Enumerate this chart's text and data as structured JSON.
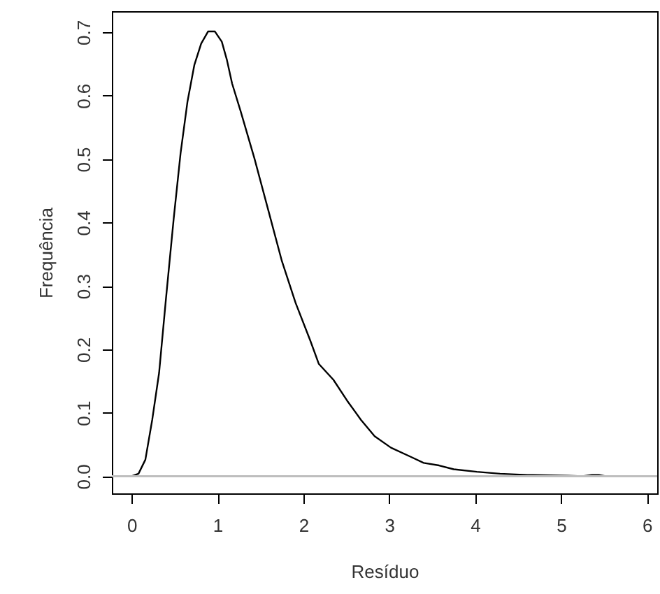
{
  "chart_data": {
    "type": "line",
    "xlabel": "Resíduo",
    "ylabel": "Frequência",
    "x": [
      0,
      0.08,
      0.16,
      0.24,
      0.32,
      0.4,
      0.49,
      0.57,
      0.65,
      0.73,
      0.81,
      0.89,
      0.97,
      1.05,
      1.11,
      1.17,
      1.27,
      1.43,
      1.59,
      1.75,
      1.91,
      2.08,
      2.18,
      2.35,
      2.51,
      2.67,
      2.83,
      3.02,
      3.26,
      3.4,
      3.58,
      3.75,
      4.02,
      4.29,
      4.61,
      5.08,
      5.25,
      5.36,
      5.4,
      5.44,
      5.52
    ],
    "series": [
      {
        "color": "#000000",
        "values": [
          0,
          0.004,
          0.026,
          0.089,
          0.163,
          0.28,
          0.406,
          0.509,
          0.59,
          0.648,
          0.682,
          0.701,
          0.701,
          0.685,
          0.656,
          0.619,
          0.575,
          0.501,
          0.42,
          0.339,
          0.273,
          0.214,
          0.177,
          0.152,
          0.119,
          0.089,
          0.063,
          0.045,
          0.03,
          0.021,
          0.017,
          0.011,
          0.007,
          0.004,
          0.002,
          0.001,
          0,
          0.002,
          0.002,
          0.002,
          0
        ]
      }
    ],
    "xlim": [
      -0.23,
      6.12
    ],
    "ylim": [
      -0.027,
      0.733
    ],
    "xticks": [
      0,
      1,
      2,
      3,
      4,
      5,
      6
    ],
    "yticks": [
      {
        "value": 0,
        "label": "0.0"
      },
      {
        "value": 0.1,
        "label": "0.1"
      },
      {
        "value": 0.2,
        "label": "0.2"
      },
      {
        "value": 0.3,
        "label": "0.3"
      },
      {
        "value": 0.4,
        "label": "0.4"
      },
      {
        "value": 0.5,
        "label": "0.5"
      },
      {
        "value": 0.6,
        "label": "0.6"
      },
      {
        "value": 0.7,
        "label": "0.7"
      }
    ],
    "ref_lines": [
      {
        "axis": "y",
        "value": 0,
        "color": "#bebebe"
      }
    ],
    "grid": false,
    "line_style": "solid"
  }
}
